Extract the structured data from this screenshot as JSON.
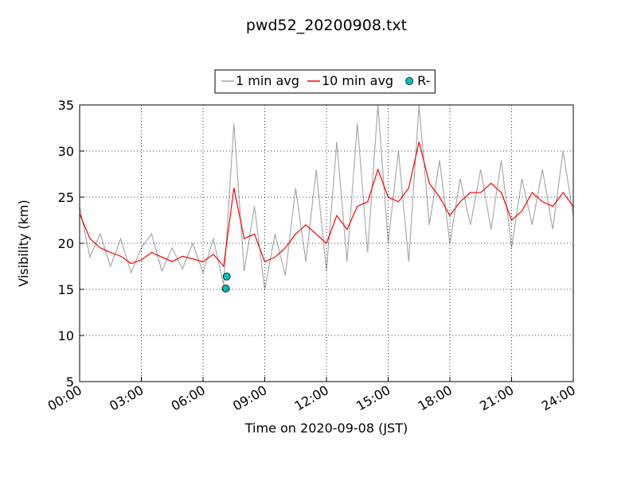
{
  "chart_data": {
    "type": "line",
    "title": "pwd52_20200908.txt",
    "x_label": "Time on 2020-09-08 (JST)",
    "y_label": "Visibility (km)",
    "xlim": [
      0,
      24
    ],
    "ylim": [
      5,
      35
    ],
    "xticks": [
      {
        "value": 0,
        "label": "00:00"
      },
      {
        "value": 3,
        "label": "03:00"
      },
      {
        "value": 6,
        "label": "06:00"
      },
      {
        "value": 9,
        "label": "09:00"
      },
      {
        "value": 12,
        "label": "12:00"
      },
      {
        "value": 15,
        "label": "15:00"
      },
      {
        "value": 18,
        "label": "18:00"
      },
      {
        "value": 21,
        "label": "21:00"
      },
      {
        "value": 24,
        "label": "24:00"
      }
    ],
    "yticks": [
      5,
      10,
      15,
      20,
      25,
      30,
      35
    ],
    "grid": true,
    "legend": "top",
    "x": [
      0,
      0.5,
      1,
      1.5,
      2,
      2.5,
      3,
      3.5,
      4,
      4.5,
      5,
      5.5,
      6,
      6.5,
      7,
      7.5,
      8,
      8.5,
      9,
      9.5,
      10,
      10.5,
      11,
      11.5,
      12,
      12.5,
      13,
      13.5,
      14,
      14.5,
      15,
      15.5,
      16,
      16.5,
      17,
      17.5,
      18,
      18.5,
      19,
      19.5,
      20,
      20.5,
      21,
      21.5,
      22,
      22.5,
      23,
      23.5,
      24
    ],
    "series": [
      {
        "name": "1 min avg",
        "color": "#aaaaaa",
        "style": "line",
        "values": [
          24,
          18.5,
          21,
          17.5,
          20.5,
          16.8,
          19.5,
          21,
          17,
          19.5,
          17.2,
          20,
          16.8,
          20.5,
          15.5,
          33,
          17,
          24,
          15,
          21,
          16.5,
          26,
          18,
          28,
          17,
          31,
          18,
          33,
          19,
          35,
          20,
          30,
          18,
          35,
          22,
          29,
          20,
          27,
          22,
          28,
          21.5,
          29,
          19.5,
          27,
          22,
          28,
          21.5,
          30,
          23
        ]
      },
      {
        "name": "10 min avg",
        "color": "#ff0000",
        "style": "line",
        "values": [
          23.2,
          20.5,
          19.5,
          19.0,
          18.6,
          17.8,
          18.2,
          19.0,
          18.5,
          18.0,
          18.6,
          18.3,
          18.0,
          18.8,
          17.5,
          26.0,
          20.5,
          21.0,
          18.0,
          18.5,
          19.5,
          21.0,
          22.0,
          21.0,
          20.0,
          23.0,
          21.5,
          24.0,
          24.5,
          28.0,
          25.0,
          24.5,
          26.0,
          31.0,
          26.5,
          25.0,
          23.0,
          24.5,
          25.5,
          25.5,
          26.5,
          25.5,
          22.5,
          23.5,
          25.5,
          24.5,
          24.0,
          25.5,
          24.0
        ]
      },
      {
        "name": "R-",
        "color": "#00c0c0",
        "style": "markers",
        "x": [
          7.1,
          7.15
        ],
        "values": [
          15.1,
          16.4
        ]
      }
    ]
  }
}
